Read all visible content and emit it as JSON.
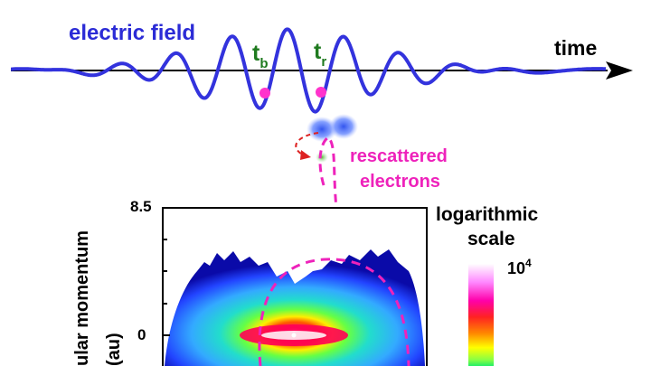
{
  "labels": {
    "electric_field": "electric field",
    "time": "time",
    "t_b_main": "t",
    "t_b_sub": "b",
    "t_r_main": "t",
    "t_r_sub": "r",
    "rescattered_line1": "rescattered",
    "rescattered_line2": "electrons",
    "scale_line1": "logarithmic",
    "scale_line2": "scale",
    "colorbar_top_base": "10",
    "colorbar_top_exp": "4",
    "y_tick_top": "8.5",
    "y_tick_zero": "0",
    "y_axis_label_line1": "ular momentum",
    "y_axis_label_line2": "(au)"
  },
  "colors": {
    "field_wave": "#3333dd",
    "time_arrow": "#000000",
    "markers": "#ff33cc",
    "trajectory": "#ee22bb",
    "recapture": "#dd2222",
    "label_green": "#1f7a1f",
    "colorbar": [
      "#ffffff",
      "#ff88ff",
      "#ff00aa",
      "#ff2222",
      "#ff8800",
      "#ffff00",
      "#88ff44",
      "#22ee66"
    ],
    "momentum_map": [
      "#ffffff",
      "#ff0066",
      "#ffff00",
      "#66ff44",
      "#22ddcc",
      "#33aaff",
      "#2244ff",
      "#0000aa"
    ]
  }
}
